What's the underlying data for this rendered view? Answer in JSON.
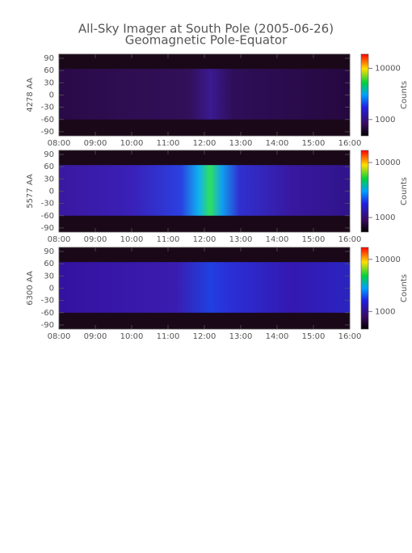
{
  "header": {
    "title": "All-Sky Imager at South Pole (2005-06-26)",
    "subtitle": "Geomagnetic Pole-Equator"
  },
  "chart_data": [
    {
      "type": "heatmap",
      "ylabel": "4278 AA",
      "xlim": [
        8,
        16
      ],
      "xticks": [
        {
          "value": 8,
          "label": "08:00"
        },
        {
          "value": 9,
          "label": "09:00"
        },
        {
          "value": 10,
          "label": "10:00"
        },
        {
          "value": 11,
          "label": "11:00"
        },
        {
          "value": 12,
          "label": "12:00"
        },
        {
          "value": 13,
          "label": "13:00"
        },
        {
          "value": 14,
          "label": "14:00"
        },
        {
          "value": 15,
          "label": "15:00"
        },
        {
          "value": 16,
          "label": "16:00"
        }
      ],
      "ylim": [
        -100,
        100
      ],
      "yticks": [
        -90,
        -60,
        -30,
        0,
        30,
        60,
        90
      ],
      "colorbar": {
        "label": "Counts",
        "scale": "log",
        "lim": [
          480,
          19000
        ],
        "ticks": [
          1000,
          10000
        ]
      }
    },
    {
      "type": "heatmap",
      "ylabel": "5577 AA",
      "xlim": [
        8,
        16
      ],
      "xticks": [
        {
          "value": 8,
          "label": "08:00"
        },
        {
          "value": 9,
          "label": "09:00"
        },
        {
          "value": 10,
          "label": "10:00"
        },
        {
          "value": 11,
          "label": "11:00"
        },
        {
          "value": 12,
          "label": "12:00"
        },
        {
          "value": 13,
          "label": "13:00"
        },
        {
          "value": 14,
          "label": "14:00"
        },
        {
          "value": 15,
          "label": "15:00"
        },
        {
          "value": 16,
          "label": "16:00"
        }
      ],
      "ylim": [
        -100,
        100
      ],
      "yticks": [
        -90,
        -60,
        -30,
        0,
        30,
        60,
        90
      ],
      "colorbar": {
        "label": "Counts",
        "scale": "log",
        "lim": [
          545,
          16600
        ],
        "ticks": [
          1000,
          10000
        ]
      }
    },
    {
      "type": "heatmap",
      "ylabel": "6300 AA",
      "xlim": [
        8,
        16
      ],
      "xticks": [
        {
          "value": 8,
          "label": "08:00"
        },
        {
          "value": 9,
          "label": "09:00"
        },
        {
          "value": 10,
          "label": "10:00"
        },
        {
          "value": 11,
          "label": "11:00"
        },
        {
          "value": 12,
          "label": "12:00"
        },
        {
          "value": 13,
          "label": "13:00"
        },
        {
          "value": 14,
          "label": "14:00"
        },
        {
          "value": 15,
          "label": "15:00"
        },
        {
          "value": 16,
          "label": "16:00"
        }
      ],
      "ylim": [
        -100,
        100
      ],
      "yticks": [
        -90,
        -60,
        -30,
        0,
        30,
        60,
        90
      ],
      "colorbar": {
        "label": "Counts",
        "scale": "log",
        "lim": [
          460,
          17000
        ],
        "ticks": [
          1000,
          10000
        ]
      }
    }
  ]
}
